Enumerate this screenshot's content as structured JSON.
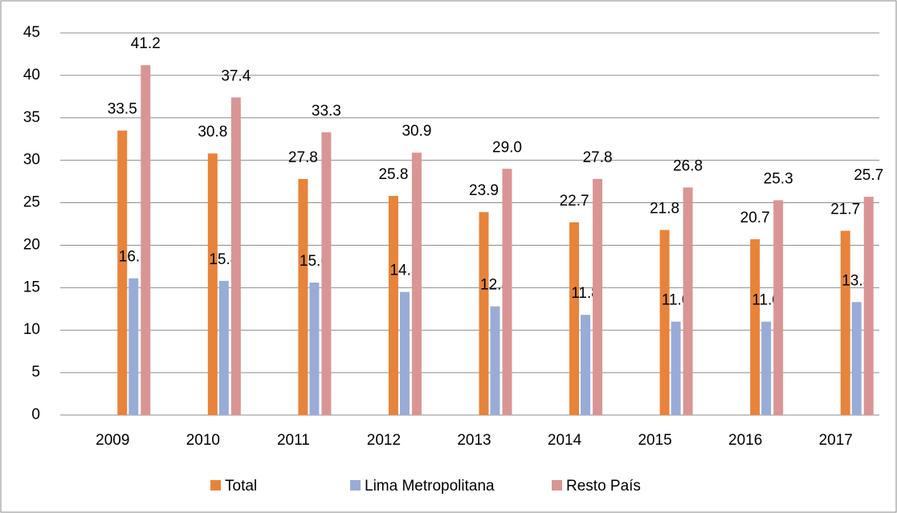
{
  "chart_data": {
    "type": "bar",
    "categories": [
      "2009",
      "2010",
      "2011",
      "2012",
      "2013",
      "2014",
      "2015",
      "2016",
      "2017"
    ],
    "series": [
      {
        "name": "Total",
        "color": "#e8833a",
        "values": [
          33.5,
          30.8,
          27.8,
          25.8,
          23.9,
          22.7,
          21.8,
          20.7,
          21.7
        ],
        "value_labels": [
          "33.5",
          "30.8",
          "27.8",
          "25.8",
          "23.9",
          "22.7",
          "21.8",
          "20.7",
          "21.7"
        ]
      },
      {
        "name": "Lima Metropolitana",
        "color": "#98acd7",
        "values": [
          16.1,
          15.8,
          15.6,
          14.5,
          12.8,
          11.8,
          11.0,
          11.0,
          13.3
        ],
        "value_labels": [
          "16.1",
          "15.8",
          "15.6",
          "14.5",
          "12.8",
          "11.8",
          "11.0",
          "11.0",
          "13.3"
        ]
      },
      {
        "name": "Resto País",
        "color": "#d99594",
        "values": [
          41.2,
          37.4,
          33.3,
          30.9,
          29.0,
          27.8,
          26.8,
          25.3,
          25.7
        ],
        "value_labels": [
          "41.2",
          "37.4",
          "33.3",
          "30.9",
          "29.0",
          "27.8",
          "26.8",
          "25.3",
          "25.7"
        ]
      }
    ],
    "ylim": [
      0,
      45
    ],
    "yticks": [
      0,
      5,
      10,
      15,
      20,
      25,
      30,
      35,
      40,
      45
    ],
    "grid": true,
    "legend": "bottom"
  }
}
